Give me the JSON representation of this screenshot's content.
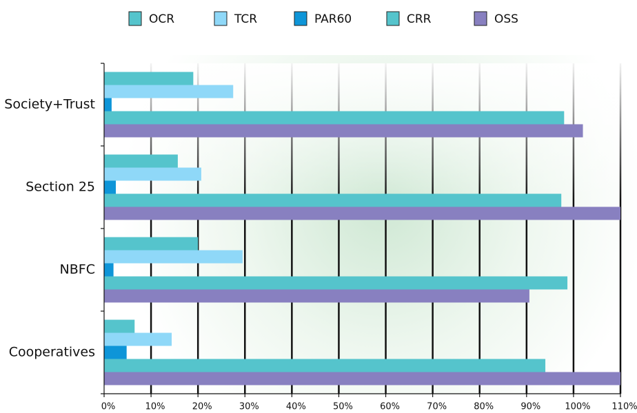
{
  "chart_data": {
    "type": "barh",
    "categories": [
      "Society+Trust",
      "Section 25",
      "NBFC",
      "Cooperatives"
    ],
    "series": [
      {
        "name": "OCR",
        "color": "#55c4cc",
        "values": [
          19,
          15.7,
          20,
          6.5
        ]
      },
      {
        "name": "TCR",
        "color": "#8fd8f8",
        "values": [
          27.5,
          20.7,
          29.5,
          14.4
        ]
      },
      {
        "name": "PAR60",
        "color": "#0e95d8",
        "values": [
          1.6,
          2.5,
          2,
          4.8
        ]
      },
      {
        "name": "CRR",
        "color": "#55c4cc",
        "values": [
          98,
          97.4,
          98.7,
          94
        ]
      },
      {
        "name": "OSS",
        "color": "#8880c0",
        "values": [
          102,
          110,
          90.6,
          110
        ]
      }
    ],
    "xlim": [
      0,
      110
    ],
    "xticks": [
      {
        "value": 0,
        "label": "0%"
      },
      {
        "value": 10,
        "label": "10%"
      },
      {
        "value": 20,
        "label": "20%"
      },
      {
        "value": 30,
        "label": "30%"
      },
      {
        "value": 40,
        "label": "40%"
      },
      {
        "value": 50,
        "label": "50%"
      },
      {
        "value": 60,
        "label": "60%"
      },
      {
        "value": 70,
        "label": "70%"
      },
      {
        "value": 80,
        "label": "80%"
      },
      {
        "value": 90,
        "label": "90%"
      },
      {
        "value": 100,
        "label": "100%"
      },
      {
        "value": 110,
        "label": "110%"
      }
    ],
    "grid": true,
    "legend": "top"
  }
}
